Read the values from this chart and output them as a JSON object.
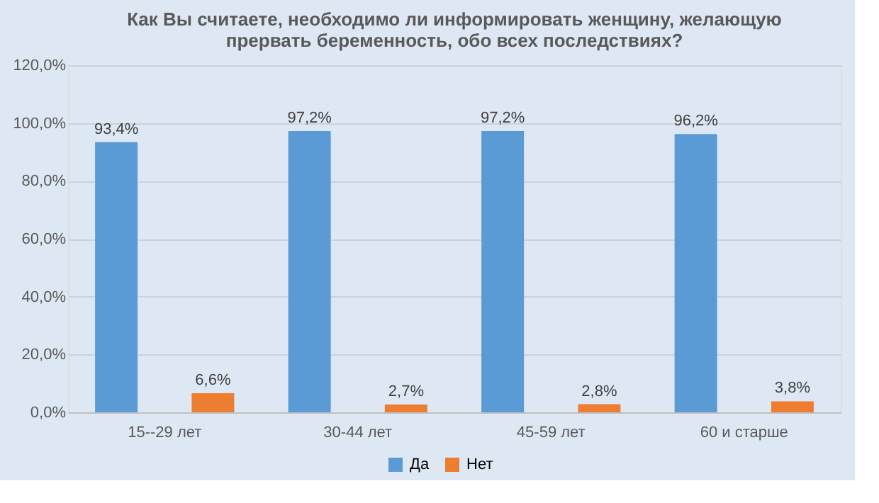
{
  "chart_data": {
    "type": "bar",
    "title": "Как Вы считаете, необходимо ли информировать женщину, желающую\nпрервать беременность, обо всех последствиях?",
    "categories": [
      "15--29 лет",
      "30-44 лет",
      "45-59 лет",
      "60 и старше"
    ],
    "series": [
      {
        "name": "Да",
        "color": "#5b9bd5",
        "values": [
          93.4,
          97.2,
          97.2,
          96.2
        ],
        "value_labels": [
          "93,4%",
          "97,2%",
          "97,2%",
          "96,2%"
        ]
      },
      {
        "name": "Нет",
        "color": "#ed7d31",
        "values": [
          6.6,
          2.7,
          2.8,
          3.8
        ],
        "value_labels": [
          "6,6%",
          "2,7%",
          "2,8%",
          "3,8%"
        ]
      }
    ],
    "ylim": [
      0,
      120
    ],
    "yticks": [
      {
        "value": 0,
        "label": "0,0%"
      },
      {
        "value": 20,
        "label": "20,0%"
      },
      {
        "value": 40,
        "label": "40,0%"
      },
      {
        "value": 60,
        "label": "60,0%"
      },
      {
        "value": 80,
        "label": "80,0%"
      },
      {
        "value": 100,
        "label": "100,0%"
      },
      {
        "value": 120,
        "label": "120,0%"
      }
    ],
    "grid": "y",
    "legend": "bottom"
  }
}
